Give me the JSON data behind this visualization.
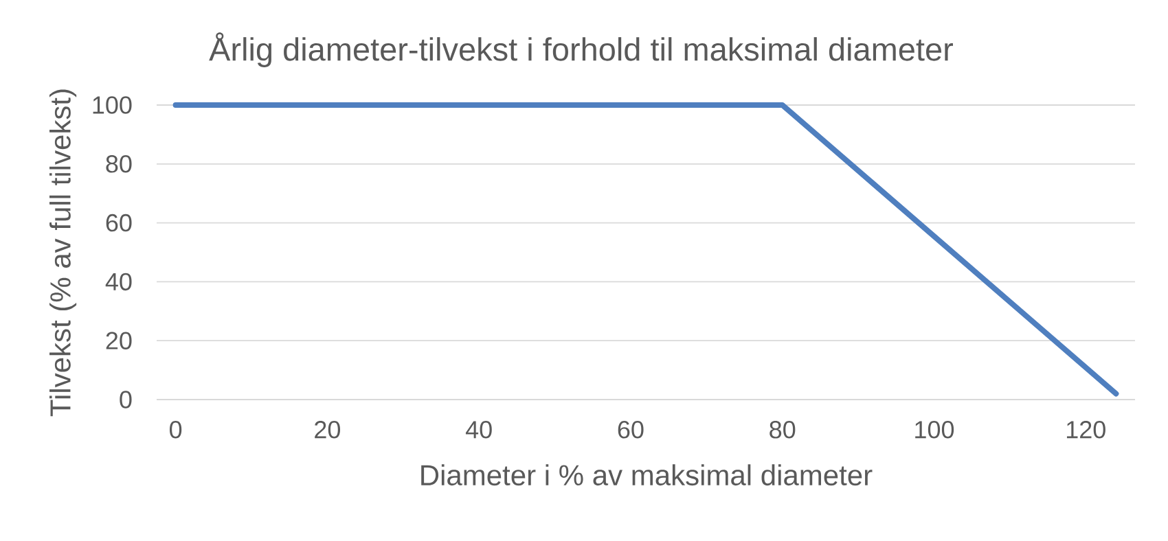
{
  "chart_data": {
    "type": "line",
    "title": "Årlig diameter-tilvekst i forhold til maksimal diameter",
    "xlabel": "Diameter i % av maksimal diameter",
    "ylabel": "Tilvekst (% av full tilvekst)",
    "x": [
      0,
      80,
      124
    ],
    "series": [
      {
        "color": "#4f7fbf",
        "values": [
          100,
          100,
          2
        ]
      }
    ],
    "xlim": [
      -2.5,
      126.5
    ],
    "xticks": [
      0,
      20,
      40,
      60,
      80,
      100,
      120
    ],
    "ylim": [
      0,
      100
    ],
    "yticks": [
      0,
      20,
      40,
      60,
      80,
      100
    ],
    "grid": "y",
    "marker": "none",
    "line_style": "solid"
  }
}
